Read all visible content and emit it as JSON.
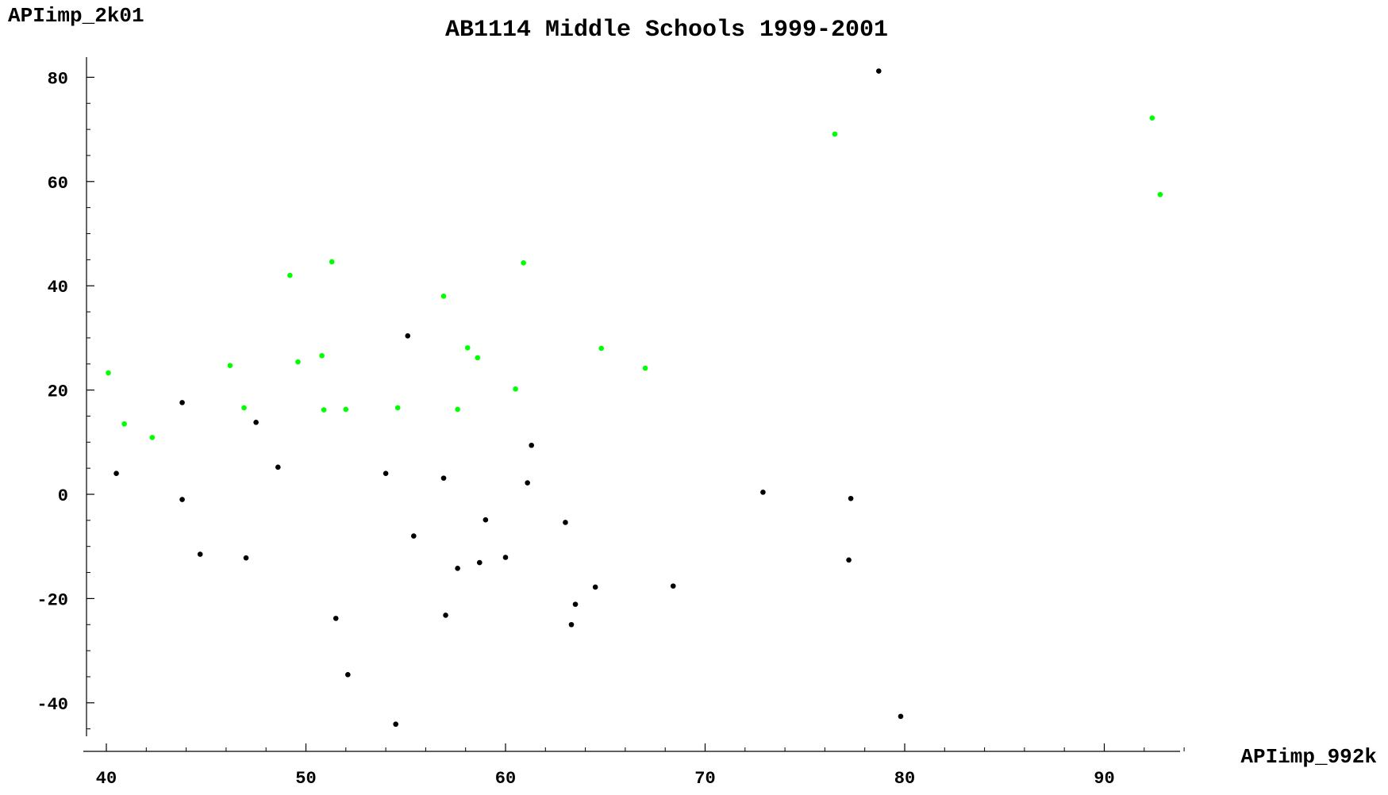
{
  "chart_data": {
    "type": "scatter",
    "title": "AB1114 Middle Schools 1999-2001",
    "xlabel": "APIimp_992k",
    "ylabel": "APIimp_2k01",
    "xlim": [
      39,
      94.5
    ],
    "ylim": [
      -47,
      84
    ],
    "x_ticks": [
      40,
      50,
      60,
      70,
      80,
      90
    ],
    "y_ticks": [
      -40,
      -20,
      0,
      20,
      40,
      60,
      80
    ],
    "x_tick_labels": [
      "40",
      "50",
      "60",
      "70",
      "80",
      "90"
    ],
    "y_tick_labels": [
      "-40",
      "-20",
      "0",
      "20",
      "40",
      "60",
      "80"
    ],
    "grid": false,
    "colors": {
      "green": "#00ff00",
      "black": "#000000",
      "axis": "#000000"
    },
    "series": [
      {
        "color": "#00ff00",
        "points": [
          [
            40.1,
            23.3
          ],
          [
            40.9,
            13.5
          ],
          [
            42.3,
            10.9
          ],
          [
            46.2,
            24.7
          ],
          [
            46.9,
            16.6
          ],
          [
            49.2,
            42.0
          ],
          [
            49.6,
            25.4
          ],
          [
            50.8,
            26.6
          ],
          [
            50.9,
            16.2
          ],
          [
            51.3,
            44.6
          ],
          [
            52.0,
            16.3
          ],
          [
            54.6,
            16.6
          ],
          [
            56.9,
            38.0
          ],
          [
            57.6,
            16.3
          ],
          [
            58.1,
            28.1
          ],
          [
            58.6,
            26.2
          ],
          [
            60.5,
            20.2
          ],
          [
            60.9,
            44.4
          ],
          [
            64.8,
            28.0
          ],
          [
            67.0,
            24.2
          ],
          [
            76.5,
            69.1
          ],
          [
            92.4,
            72.2
          ],
          [
            92.8,
            57.5
          ]
        ]
      },
      {
        "color": "#000000",
        "points": [
          [
            40.5,
            4.0
          ],
          [
            43.8,
            17.6
          ],
          [
            43.8,
            -1.0
          ],
          [
            44.7,
            -11.5
          ],
          [
            47.0,
            -12.2
          ],
          [
            47.5,
            13.8
          ],
          [
            48.6,
            5.2
          ],
          [
            51.5,
            -23.8
          ],
          [
            52.1,
            -34.6
          ],
          [
            54.0,
            4.0
          ],
          [
            54.5,
            -44.1
          ],
          [
            55.1,
            30.4
          ],
          [
            55.4,
            -8.0
          ],
          [
            56.9,
            3.1
          ],
          [
            57.0,
            -23.2
          ],
          [
            57.6,
            -14.2
          ],
          [
            58.7,
            -13.1
          ],
          [
            59.0,
            -4.9
          ],
          [
            60.0,
            -12.1
          ],
          [
            61.1,
            2.2
          ],
          [
            61.3,
            9.4
          ],
          [
            63.0,
            -5.4
          ],
          [
            63.3,
            -25.0
          ],
          [
            63.5,
            -21.1
          ],
          [
            64.5,
            -17.8
          ],
          [
            68.4,
            -17.6
          ],
          [
            72.9,
            0.4
          ],
          [
            77.3,
            -0.8
          ],
          [
            77.2,
            -12.6
          ],
          [
            78.7,
            81.2
          ],
          [
            79.8,
            -42.6
          ]
        ]
      }
    ]
  }
}
